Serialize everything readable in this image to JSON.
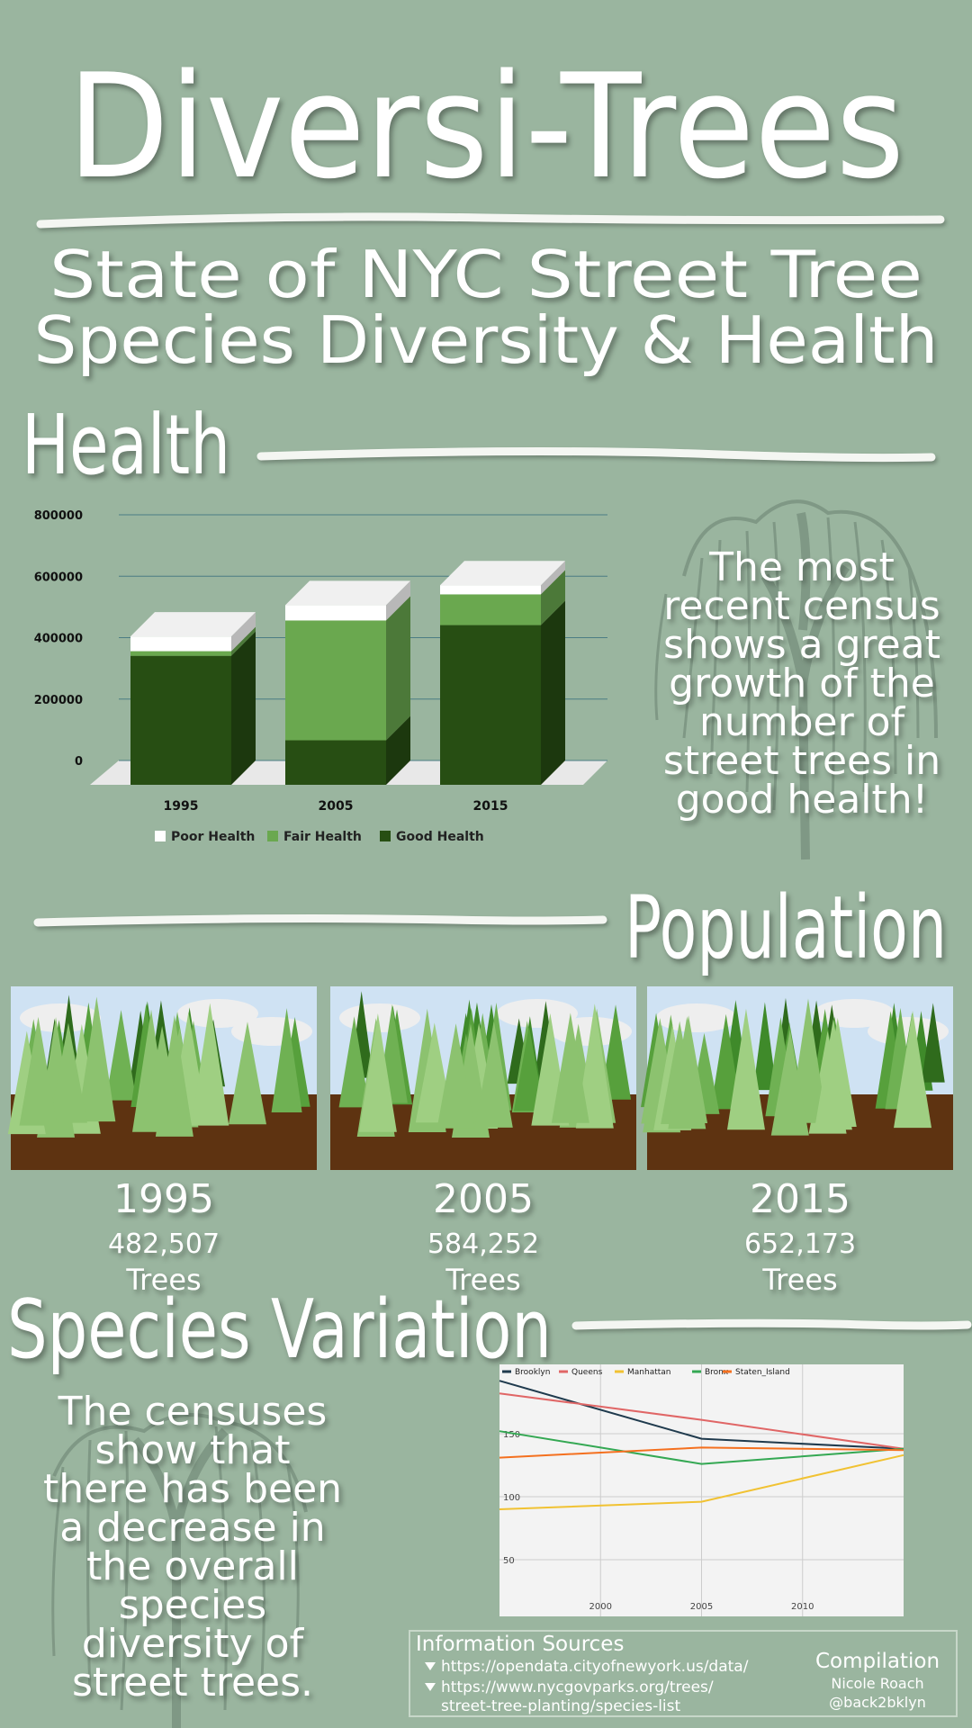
{
  "header": {
    "title": "Diversi-Trees",
    "subtitle": [
      "State of NYC Street Tree",
      "Species Diversity & Health"
    ]
  },
  "sections": {
    "health": {
      "heading": "Health",
      "text": [
        "The most",
        "recent census",
        "shows a great",
        "growth of the",
        "number of",
        "street trees in",
        "good health!"
      ]
    },
    "population": {
      "heading": "Population",
      "panels": [
        {
          "year": "1995",
          "count": "482,507",
          "unit": "Trees"
        },
        {
          "year": "2005",
          "count": "584,252",
          "unit": "Trees"
        },
        {
          "year": "2015",
          "count": "652,173",
          "unit": "Trees"
        }
      ]
    },
    "species": {
      "heading": "Species Variation",
      "text": [
        "The censuses",
        "show that",
        "there has been",
        "a decrease in",
        "the overall",
        "species",
        "diversity of",
        "street trees."
      ]
    }
  },
  "chart_data": [
    {
      "type": "bar",
      "stacked": true,
      "categories": [
        "1995",
        "2005",
        "2015"
      ],
      "series": [
        {
          "name": "Poor Health",
          "color": "#ffffff",
          "values": [
            48000,
            50000,
            30000
          ]
        },
        {
          "name": "Fair Health",
          "color": "#6aa84f",
          "values": [
            15000,
            390000,
            100000
          ]
        },
        {
          "name": "Good Health",
          "color": "#274e13",
          "values": [
            420000,
            145000,
            520000
          ]
        }
      ],
      "ylim": [
        0,
        800000
      ],
      "yticks": [
        0,
        200000,
        400000,
        600000,
        800000
      ],
      "grid": true
    },
    {
      "type": "line",
      "x": [
        1995,
        2005,
        2015
      ],
      "xlim": [
        1995,
        2015
      ],
      "xticks": [
        2000,
        2005,
        2010
      ],
      "ylim": [
        5,
        200
      ],
      "yticks": [
        50,
        100,
        150
      ],
      "grid": true,
      "series": [
        {
          "name": "Brooklyn",
          "color": "#1f3a4d",
          "values": [
            192,
            146,
            138
          ]
        },
        {
          "name": "Queens",
          "color": "#e06666",
          "values": [
            182,
            161,
            138
          ]
        },
        {
          "name": "Manhattan",
          "color": "#f1c232",
          "values": [
            90,
            96,
            133
          ]
        },
        {
          "name": "Bronx",
          "color": "#34a853",
          "values": [
            152,
            126,
            138
          ]
        },
        {
          "name": "Staten_Island",
          "color": "#f4701f",
          "values": [
            131,
            139,
            137
          ]
        }
      ]
    }
  ],
  "sources": {
    "heading": "Information Sources",
    "links": [
      [
        "https://opendata.cityofnewyork.us/data/"
      ],
      [
        "https://www.nycgovparks.org/trees/",
        "street-tree-planting/species-list"
      ]
    ]
  },
  "credits": {
    "heading": "Compilation",
    "name": "Nicole Roach",
    "handle": "@back2bklyn"
  }
}
